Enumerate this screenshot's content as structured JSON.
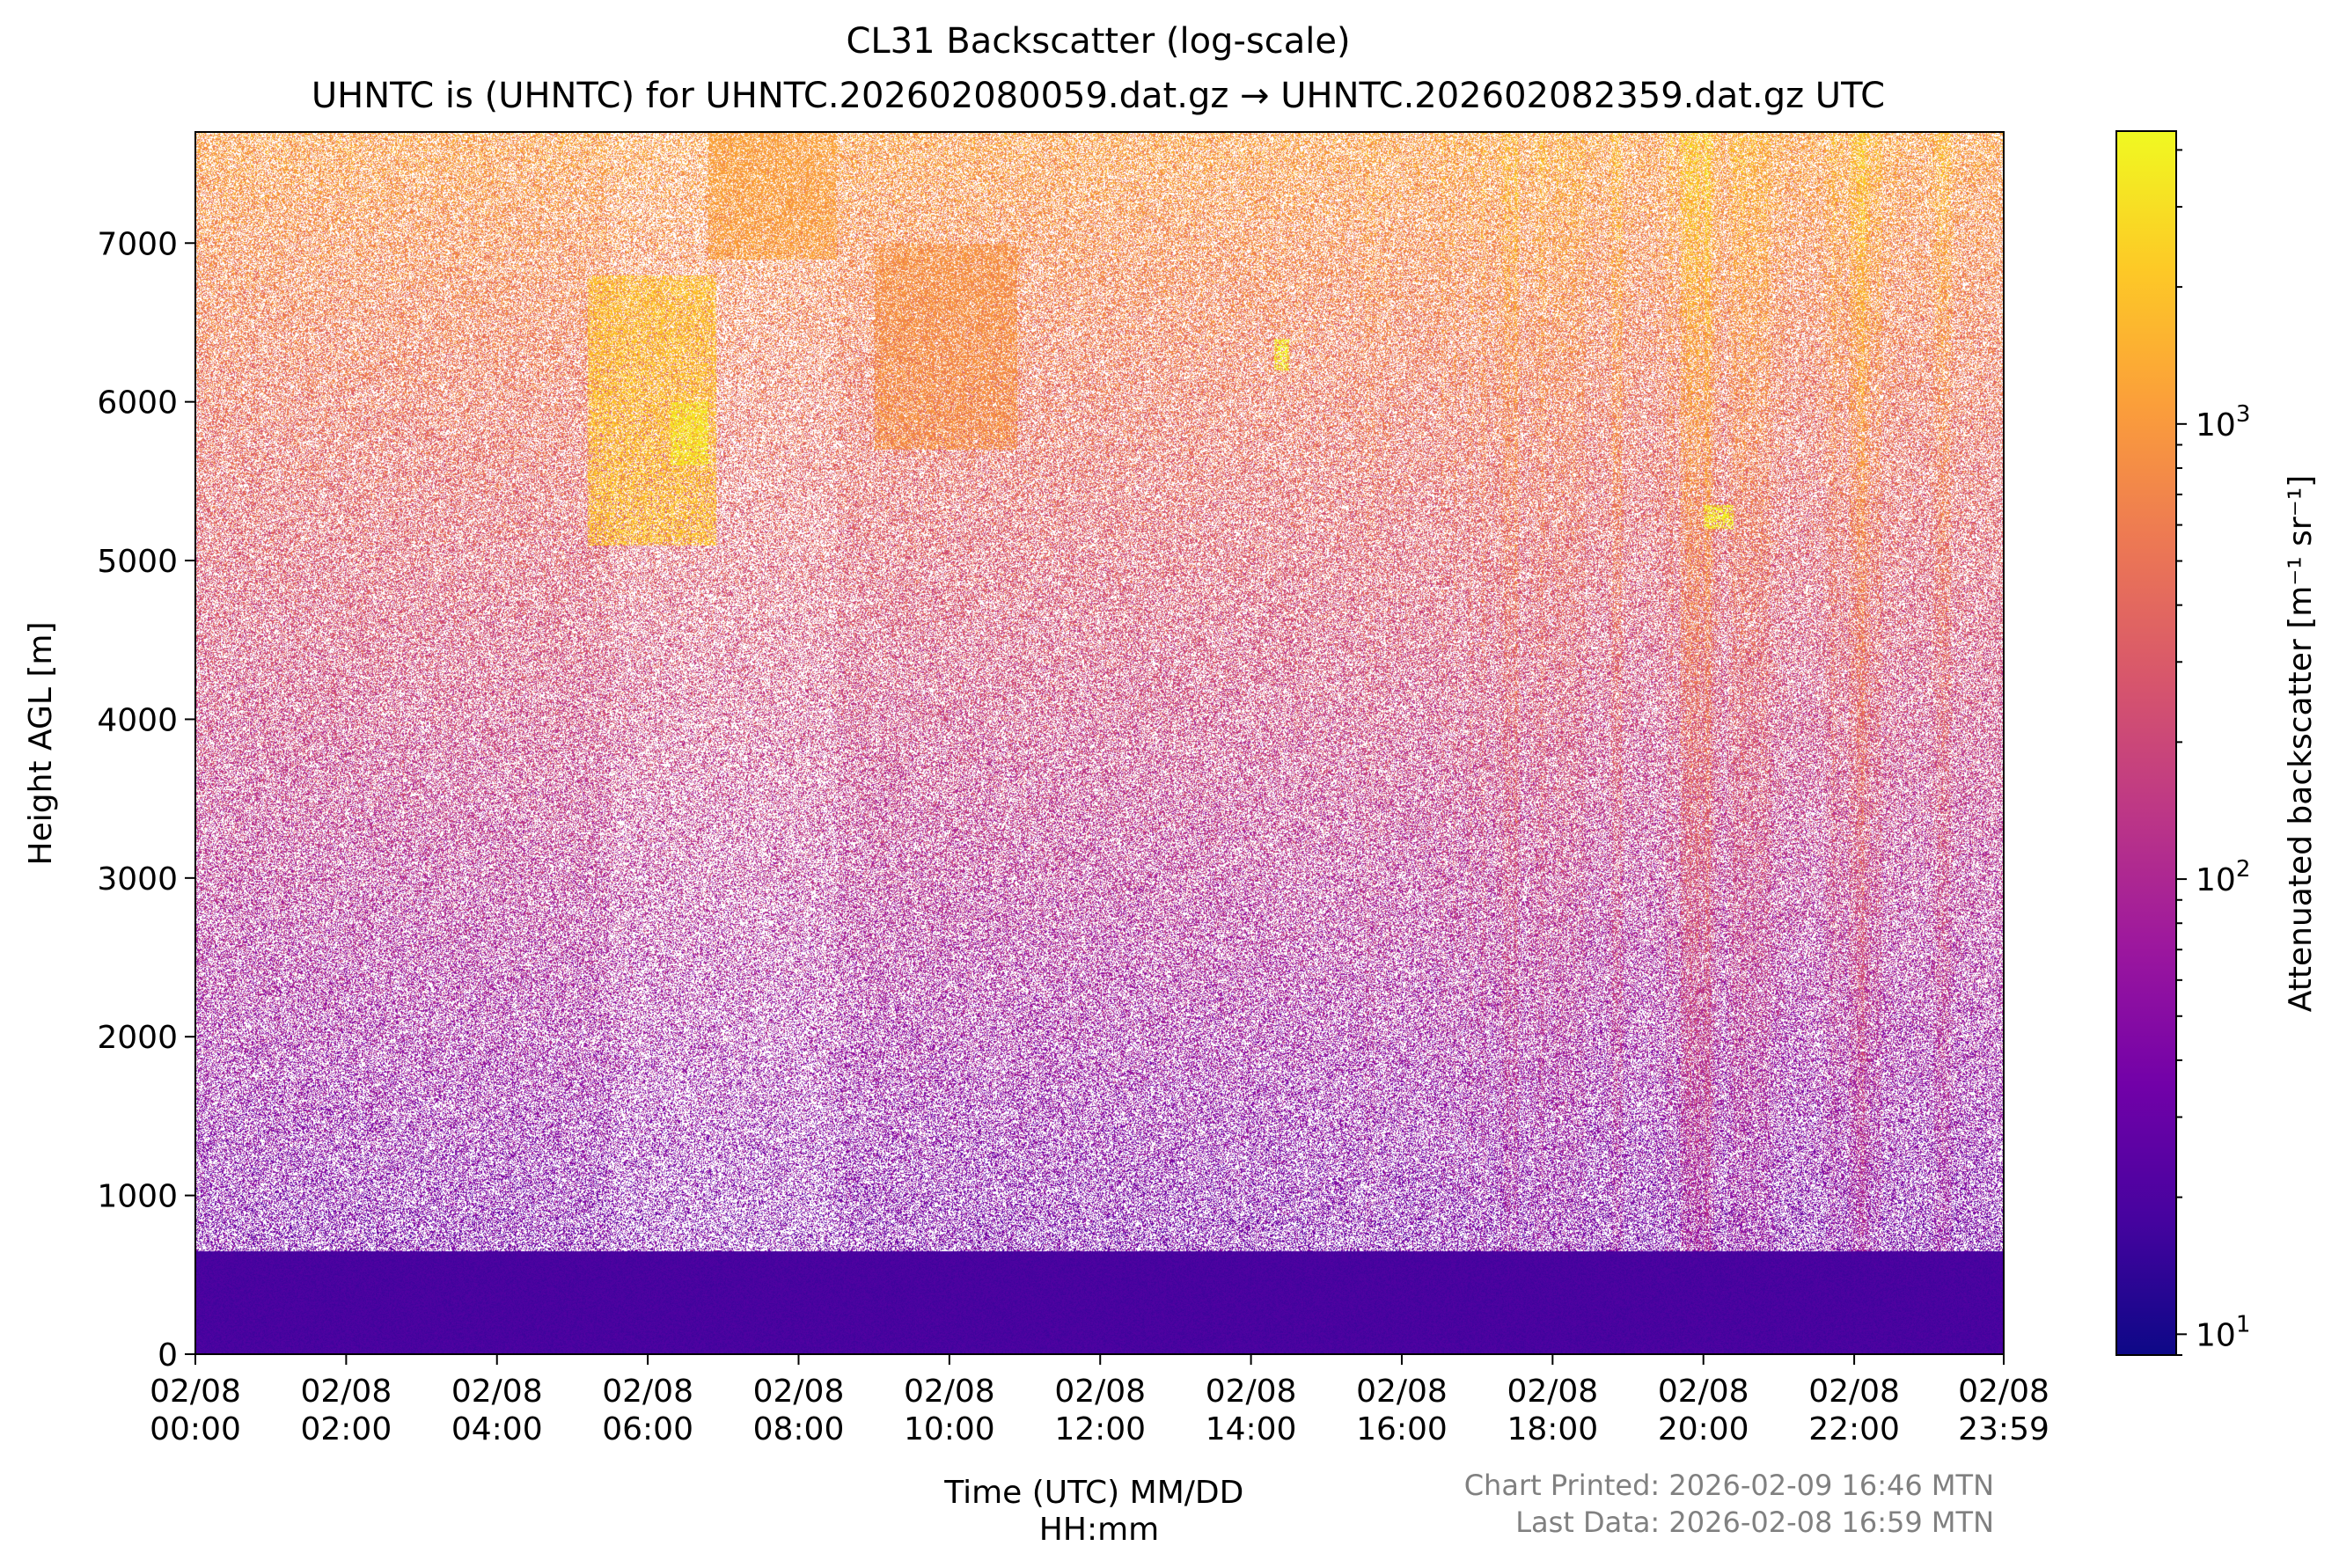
{
  "chart_data": {
    "type": "heatmap",
    "title": "CL31 Backscatter (log-scale)",
    "subtitle": "UHNTC is (UHNTC) for UHNTC.202602080059.dat.gz → UHNTC.202602082359.dat.gz UTC",
    "xlabel": "Time (UTC) MM/DD\nHH:mm",
    "ylabel": "Height AGL [m]",
    "x_ticks": [
      {
        "hours": 0,
        "date": "02/08",
        "time": "00:00"
      },
      {
        "hours": 2,
        "date": "02/08",
        "time": "02:00"
      },
      {
        "hours": 4,
        "date": "02/08",
        "time": "04:00"
      },
      {
        "hours": 6,
        "date": "02/08",
        "time": "06:00"
      },
      {
        "hours": 8,
        "date": "02/08",
        "time": "08:00"
      },
      {
        "hours": 10,
        "date": "02/08",
        "time": "10:00"
      },
      {
        "hours": 12,
        "date": "02/08",
        "time": "12:00"
      },
      {
        "hours": 14,
        "date": "02/08",
        "time": "14:00"
      },
      {
        "hours": 16,
        "date": "02/08",
        "time": "16:00"
      },
      {
        "hours": 18,
        "date": "02/08",
        "time": "18:00"
      },
      {
        "hours": 20,
        "date": "02/08",
        "time": "20:00"
      },
      {
        "hours": 22,
        "date": "02/08",
        "time": "22:00"
      },
      {
        "hours": 23.983,
        "date": "02/08",
        "time": "23:59"
      }
    ],
    "xlim_hours": [
      0,
      23.983
    ],
    "y_ticks": [
      0,
      1000,
      2000,
      3000,
      4000,
      5000,
      6000,
      7000
    ],
    "ylim": [
      0,
      7700
    ],
    "colorbar": {
      "label": "Attenuated backscatter [m⁻¹ sr⁻¹]",
      "scale": "log",
      "range": [
        9,
        4400
      ],
      "ticks": [
        {
          "value": 10,
          "mantissa": "10",
          "exp": "1"
        },
        {
          "value": 100,
          "mantissa": "10",
          "exp": "2"
        },
        {
          "value": 1000,
          "mantissa": "10",
          "exp": "3"
        }
      ],
      "colormap": "plasma",
      "colors": [
        "#0d0887",
        "#46039f",
        "#7201a8",
        "#9c179e",
        "#bd3786",
        "#d8576b",
        "#ed7953",
        "#fb9f3a",
        "#fdca26",
        "#f0f921"
      ]
    },
    "features": [
      {
        "label": "low-level backscatter band",
        "hours": [
          0,
          23.983
        ],
        "height_m": [
          0,
          650
        ],
        "log10_value": 1.25
      },
      {
        "label": "elevated cloud streaks",
        "hours": [
          5.2,
          6.9
        ],
        "height_m": [
          5100,
          6800
        ],
        "log10_value": 3.3
      },
      {
        "label": "cloud patch",
        "hours": [
          6.3,
          6.8
        ],
        "height_m": [
          5600,
          6000
        ],
        "log10_value": 3.55
      },
      {
        "label": "fall streaks",
        "hours": [
          6.8,
          8.5
        ],
        "height_m": [
          6900,
          7700
        ],
        "log10_value": 3.05
      },
      {
        "label": "fall streaks",
        "hours": [
          9.0,
          10.9
        ],
        "height_m": [
          5700,
          7000
        ],
        "log10_value": 2.95
      },
      {
        "label": "small cloud",
        "hours": [
          14.3,
          14.5
        ],
        "height_m": [
          6200,
          6400
        ],
        "log10_value": 3.6
      },
      {
        "label": "small cloud",
        "hours": [
          20.0,
          20.4
        ],
        "height_m": [
          5200,
          5350
        ],
        "log10_value": 3.6
      },
      {
        "label": "precipitation streaks",
        "hours": [
          15.5,
          23.2
        ],
        "height_m": [
          300,
          7700
        ],
        "log10_value": 3.1
      }
    ]
  },
  "annotations": {
    "printed": "Chart Printed: 2026-02-09 16:46 MTN",
    "last_data": "Last Data: 2026-02-08 16:59 MTN"
  }
}
